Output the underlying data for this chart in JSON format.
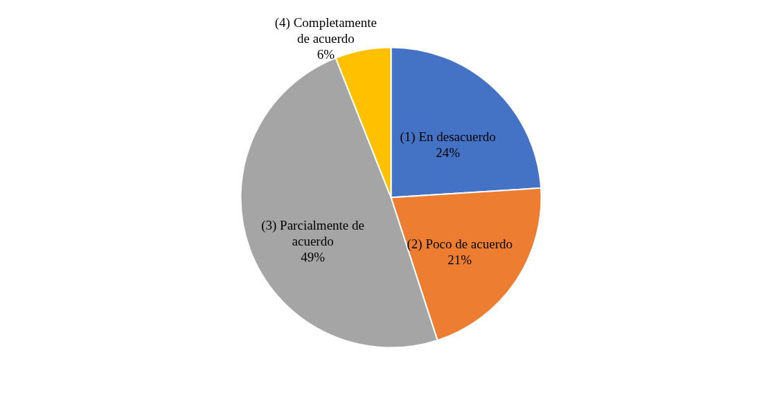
{
  "chart_data": {
    "type": "pie",
    "categories": [
      "(1) En desacuerdo",
      "(2) Poco de acuerdo",
      "(3) Parcialmente de acuerdo",
      "(4) Completamente de acuerdo"
    ],
    "values": [
      24,
      21,
      49,
      6
    ],
    "colors": [
      "#4472c4",
      "#ed7d31",
      "#a5a5a5",
      "#ffc000"
    ],
    "value_labels": [
      "24%",
      "21%",
      "49%",
      "6%"
    ],
    "legend": false
  }
}
